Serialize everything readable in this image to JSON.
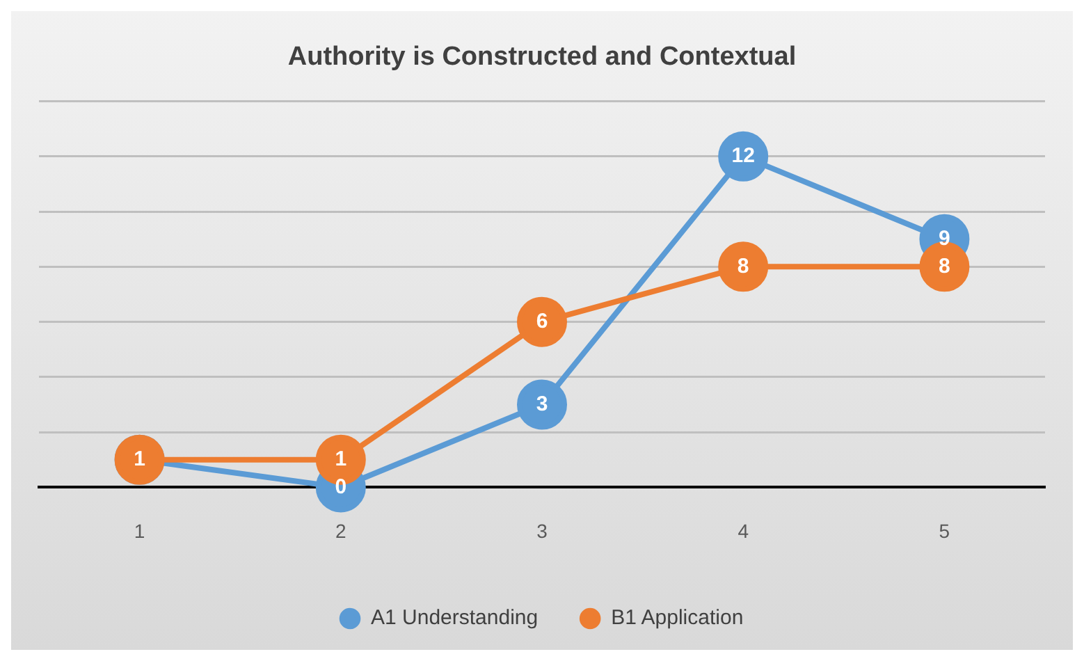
{
  "chart_data": {
    "type": "line",
    "title": "Authority is Constructed and Contextual",
    "categories": [
      "1",
      "2",
      "3",
      "4",
      "5"
    ],
    "series": [
      {
        "name": "A1 Understanding",
        "color": "#5b9bd5",
        "values": [
          1,
          0,
          3,
          12,
          9
        ],
        "value_labels": [
          null,
          "0",
          "3",
          "12",
          "9"
        ]
      },
      {
        "name": "B1 Application",
        "color": "#ed7d31",
        "values": [
          1,
          1,
          6,
          8,
          8
        ],
        "value_labels": [
          "1",
          "1",
          "6",
          "8",
          "8"
        ]
      }
    ],
    "ylim": [
      0,
      14
    ],
    "yticks": [
      {
        "value": 0,
        "label": null
      },
      {
        "value": 2,
        "label": null
      },
      {
        "value": 4,
        "label": null
      },
      {
        "value": 6,
        "label": null
      },
      {
        "value": 8,
        "label": null
      },
      {
        "value": 10,
        "label": null
      },
      {
        "value": 12,
        "label": null
      },
      {
        "value": 14,
        "label": null
      }
    ],
    "grid": "y",
    "legend": "bottom",
    "tick_labels": "x",
    "marker": "circle",
    "line_style": "solid"
  }
}
